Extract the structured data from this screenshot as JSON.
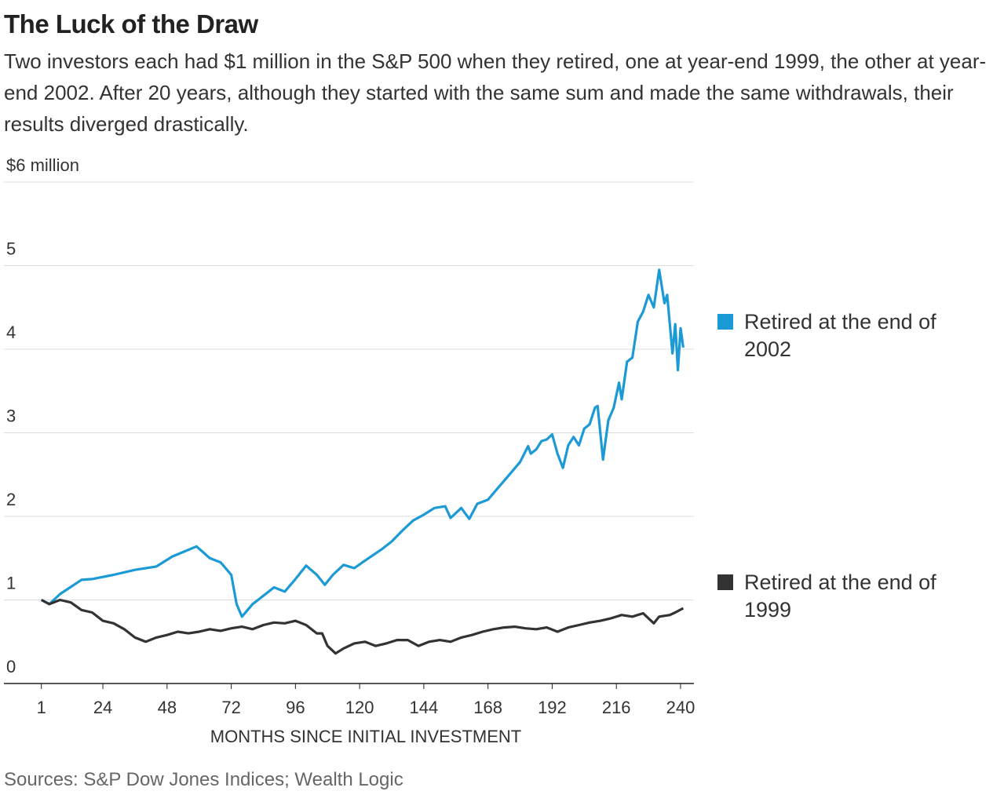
{
  "chart_data": {
    "type": "line",
    "title": "The Luck of the Draw",
    "subtitle": "Two investors each had $1 million in the S&P 500 when they retired, one at year-end 1999, the other at year-end 2002. After 20 years, although they started with the same sum and made the same withdrawals, their results diverged drastically.",
    "x_label": "MONTHS SINCE INITIAL INVESTMENT",
    "source": "Sources: S&P Dow Jones Indices; Wealth Logic",
    "xlim": [
      -13,
      245
    ],
    "xticks": [
      1,
      24,
      48,
      72,
      96,
      120,
      144,
      168,
      192,
      216,
      240
    ],
    "ylim": [
      0,
      6
    ],
    "yticks": [
      0,
      1,
      2,
      3,
      4,
      5,
      {
        "value": 6,
        "label": "$6 million"
      }
    ],
    "grid": true,
    "series": [
      {
        "name": "Retired at the end of 2002",
        "color": "#1b9ad6",
        "x": [
          1,
          4,
          8,
          16,
          20,
          28,
          36,
          44,
          50,
          56,
          59,
          64,
          68,
          72,
          74,
          76,
          80,
          84,
          88,
          92,
          96,
          100,
          104,
          107,
          110,
          114,
          118,
          122,
          128,
          132,
          136,
          140,
          144,
          148,
          152,
          154,
          158,
          161,
          164,
          168,
          172,
          176,
          180,
          183,
          184,
          186,
          188,
          190,
          192,
          194,
          196,
          198,
          200,
          202,
          204,
          206,
          208,
          209,
          211,
          213,
          215,
          217,
          218,
          220,
          222,
          224,
          226,
          228,
          230,
          232,
          234,
          235,
          236,
          237,
          238,
          239,
          240,
          241
        ],
        "values": [
          1.0,
          0.95,
          1.07,
          1.24,
          1.25,
          1.3,
          1.36,
          1.4,
          1.52,
          1.6,
          1.64,
          1.5,
          1.45,
          1.3,
          0.95,
          0.8,
          0.95,
          1.05,
          1.15,
          1.1,
          1.25,
          1.41,
          1.3,
          1.18,
          1.3,
          1.42,
          1.38,
          1.47,
          1.6,
          1.7,
          1.83,
          1.95,
          2.02,
          2.1,
          2.12,
          1.98,
          2.1,
          1.97,
          2.15,
          2.2,
          2.35,
          2.5,
          2.65,
          2.84,
          2.75,
          2.8,
          2.9,
          2.92,
          2.98,
          2.75,
          2.58,
          2.85,
          2.95,
          2.85,
          3.05,
          3.1,
          3.3,
          3.32,
          2.68,
          3.15,
          3.3,
          3.6,
          3.4,
          3.85,
          3.9,
          4.33,
          4.45,
          4.65,
          4.5,
          4.95,
          4.55,
          4.65,
          4.3,
          3.95,
          4.3,
          3.75,
          4.25,
          4.02
        ]
      },
      {
        "name": "Retired at the end of 1999",
        "color": "#333333",
        "x": [
          1,
          4,
          8,
          12,
          16,
          20,
          24,
          28,
          32,
          36,
          40,
          44,
          48,
          52,
          56,
          60,
          64,
          68,
          72,
          76,
          80,
          84,
          88,
          92,
          96,
          100,
          104,
          106,
          108,
          111,
          114,
          118,
          122,
          126,
          130,
          134,
          138,
          142,
          146,
          150,
          154,
          158,
          162,
          166,
          170,
          174,
          178,
          182,
          186,
          190,
          194,
          198,
          202,
          206,
          210,
          214,
          218,
          222,
          226,
          228,
          230,
          232,
          236,
          238,
          241
        ],
        "values": [
          1.0,
          0.95,
          1.0,
          0.97,
          0.88,
          0.85,
          0.75,
          0.72,
          0.65,
          0.55,
          0.5,
          0.55,
          0.58,
          0.62,
          0.6,
          0.62,
          0.65,
          0.63,
          0.66,
          0.68,
          0.65,
          0.7,
          0.73,
          0.72,
          0.75,
          0.7,
          0.6,
          0.6,
          0.45,
          0.36,
          0.42,
          0.48,
          0.5,
          0.45,
          0.48,
          0.52,
          0.52,
          0.45,
          0.5,
          0.52,
          0.5,
          0.55,
          0.58,
          0.62,
          0.65,
          0.67,
          0.68,
          0.66,
          0.65,
          0.67,
          0.62,
          0.67,
          0.7,
          0.73,
          0.75,
          0.78,
          0.82,
          0.8,
          0.84,
          0.78,
          0.72,
          0.8,
          0.82,
          0.85,
          0.9
        ]
      }
    ]
  }
}
